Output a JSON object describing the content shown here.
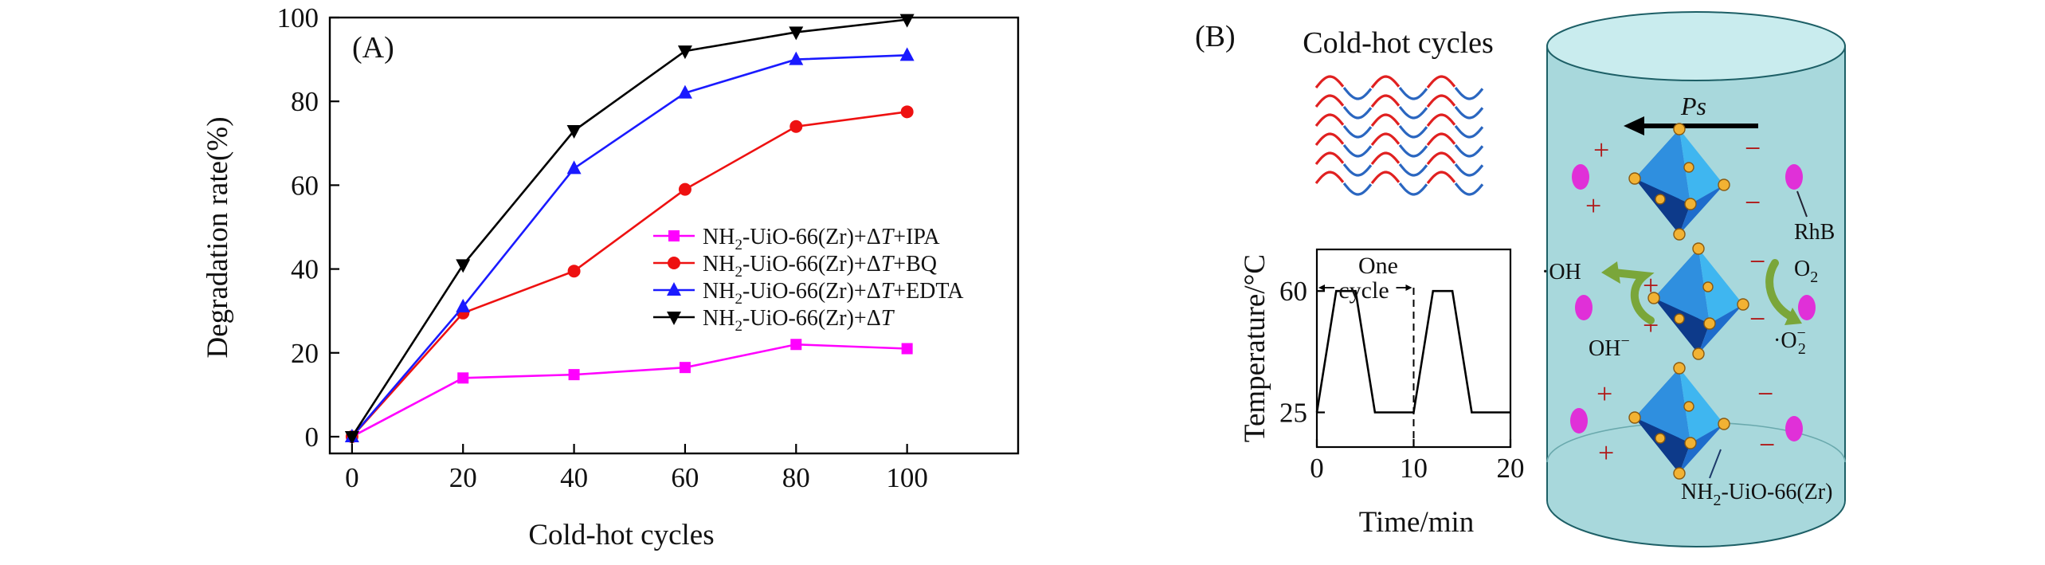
{
  "panel_a": {
    "label": "(A)",
    "chart_data": {
      "type": "line",
      "title": "",
      "xlabel": "Cold-hot cycles",
      "ylabel": "Degradation rate(%)",
      "x": [
        0,
        20,
        40,
        60,
        80,
        100
      ],
      "xlim": [
        -4,
        120
      ],
      "ylim": [
        -4,
        100
      ],
      "xticks": [
        0,
        20,
        40,
        60,
        80,
        100
      ],
      "yticks": [
        0,
        20,
        40,
        60,
        80,
        100
      ],
      "legend_position": "center-right",
      "series": [
        {
          "name": "NH2-UiO-66(Zr)+ΔT+IPA",
          "name_parts": [
            "NH",
            "2",
            "-UiO-66(Zr)+Δ",
            "T",
            "+IPA"
          ],
          "color": "#ff00ff",
          "marker": "square",
          "values": [
            0,
            14,
            14.8,
            16.5,
            22,
            21
          ]
        },
        {
          "name": "NH2-UiO-66(Zr)+ΔT+BQ",
          "name_parts": [
            "NH",
            "2",
            "-UiO-66(Zr)+Δ",
            "T",
            "+BQ"
          ],
          "color": "#ee1111",
          "marker": "circle",
          "values": [
            0,
            29.5,
            39.5,
            59,
            74,
            77.5
          ]
        },
        {
          "name": "NH2-UiO-66(Zr)+ΔT+EDTA",
          "name_parts": [
            "NH",
            "2",
            "-UiO-66(Zr)+Δ",
            "T",
            "+EDTA"
          ],
          "color": "#1a1aff",
          "marker": "triangle-up",
          "values": [
            0,
            31,
            64,
            82,
            90,
            91
          ]
        },
        {
          "name": "NH2-UiO-66(Zr)+ΔT",
          "name_parts": [
            "NH",
            "2",
            "-UiO-66(Zr)+Δ",
            "T",
            ""
          ],
          "color": "#000000",
          "marker": "triangle-down",
          "values": [
            0,
            41,
            73,
            92,
            96.5,
            99.5
          ]
        }
      ]
    }
  },
  "panel_b": {
    "label": "(B)",
    "waves_title": "Cold-hot cycles",
    "wave_colors": [
      "#e02020",
      "#2a66c0"
    ],
    "cycle_chart": {
      "type": "line",
      "xlabel": "Time/min",
      "ylabel": "Temperature/°C",
      "xticks": [
        0,
        10,
        20
      ],
      "yticks": [
        25,
        60
      ],
      "xlim": [
        0,
        20
      ],
      "ylim": [
        15,
        72
      ],
      "points": [
        [
          0,
          25
        ],
        [
          2,
          60
        ],
        [
          4,
          60
        ],
        [
          6,
          25
        ],
        [
          8,
          25
        ],
        [
          10,
          25
        ],
        [
          12,
          60
        ],
        [
          14,
          60
        ],
        [
          16,
          25
        ],
        [
          18,
          25
        ],
        [
          20,
          25
        ]
      ],
      "annotation_line1": "One",
      "annotation_line2": "cycle",
      "cycle_marker_x": 10
    },
    "schematic": {
      "ps_label": "Ps",
      "rhb_label": "RhB",
      "oh_radical": "·OH",
      "oh_minus_base": "OH",
      "oh_minus_sup": "−",
      "o2_label": "O",
      "o2_sub": "2",
      "o2_radical_prefix": "·O",
      "o2_radical_sub": "2",
      "o2_radical_sup": "−",
      "catalyst_label": "NH2-UiO-66(Zr)",
      "catalyst_parts": [
        "NH",
        "2",
        "-UiO-66(Zr)"
      ],
      "plus": "+",
      "minus": "−",
      "colors": {
        "cylinder_fill": "#a8d8dc",
        "cylinder_top": "#c9ecee",
        "octahedron_light": "#3fb6f0",
        "octahedron_dark": "#1246a8",
        "node": "#f2b233",
        "dye": "#e030d8",
        "arrow_green": "#7aa63a",
        "charge": "#b01818"
      }
    }
  }
}
